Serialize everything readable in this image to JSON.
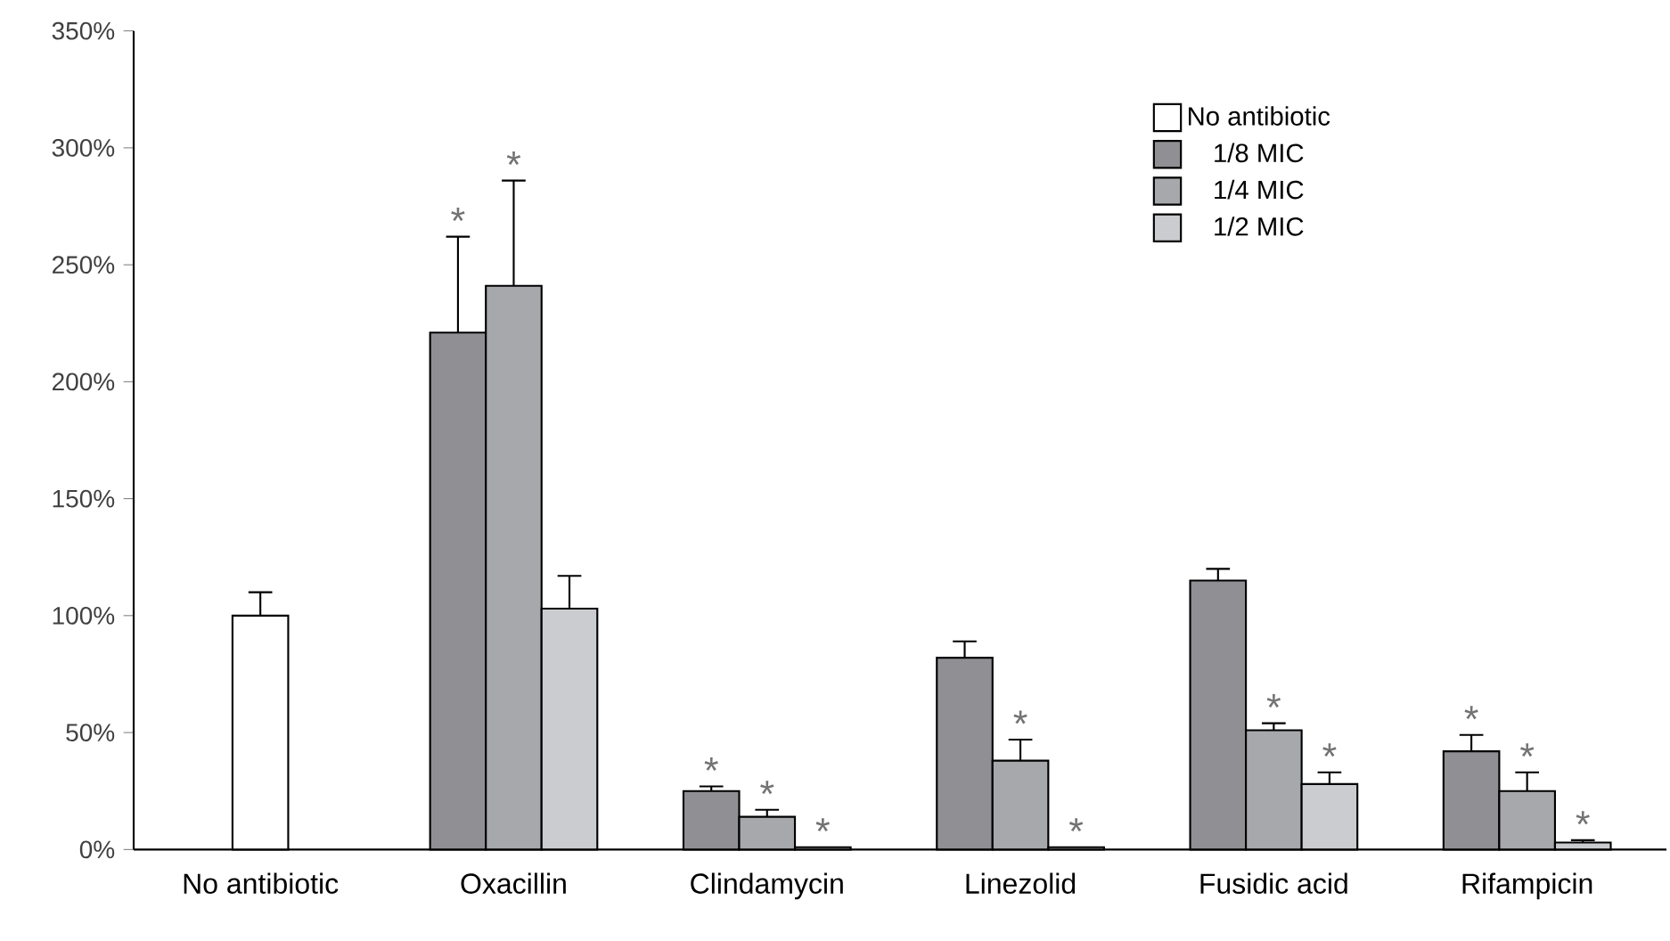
{
  "chart_data": {
    "type": "bar",
    "categories": [
      "No antibiotic",
      "Oxacillin",
      "Clindamycin",
      "Linezolid",
      "Fusidic acid",
      "Rifampicin"
    ],
    "series": [
      {
        "name": "No antibiotic",
        "color": "#ffffff",
        "values": [
          100,
          null,
          null,
          null,
          null,
          null
        ],
        "errors": [
          [
            100,
            110
          ],
          null,
          null,
          null,
          null,
          null
        ]
      },
      {
        "name": "1/8 MIC",
        "color": "#909094",
        "values": [
          null,
          221,
          25,
          82,
          115,
          42
        ],
        "errors": [
          null,
          [
            221,
            262
          ],
          [
            25,
            27
          ],
          [
            82,
            89
          ],
          [
            115,
            120
          ],
          [
            42,
            49
          ]
        ],
        "value_labels": [
          null,
          "*",
          "*",
          null,
          null,
          "*"
        ]
      },
      {
        "name": "1/4 MIC",
        "color": "#a7a8ac",
        "values": [
          null,
          241,
          14,
          38,
          51,
          25
        ],
        "errors": [
          null,
          [
            241,
            286
          ],
          [
            14,
            17
          ],
          [
            38,
            47
          ],
          [
            51,
            54
          ],
          [
            25,
            33
          ]
        ],
        "value_labels": [
          null,
          "*",
          "*",
          "*",
          "*",
          "*"
        ]
      },
      {
        "name": "1/2 MIC",
        "color": "#cbcccf",
        "values": [
          null,
          103,
          1,
          1,
          28,
          3
        ],
        "errors": [
          null,
          [
            103,
            117
          ],
          null,
          null,
          [
            28,
            33
          ],
          [
            3,
            4
          ]
        ],
        "value_labels": [
          null,
          null,
          "*",
          "*",
          "*",
          "*"
        ]
      }
    ],
    "ylim": [
      0,
      350
    ],
    "yticks": [
      {
        "value": 0,
        "label": "0%"
      },
      {
        "value": 50,
        "label": "50%"
      },
      {
        "value": 100,
        "label": "100%"
      },
      {
        "value": 150,
        "label": "150%"
      },
      {
        "value": 200,
        "label": "200%"
      },
      {
        "value": 250,
        "label": "250%"
      },
      {
        "value": 300,
        "label": "300%"
      },
      {
        "value": 350,
        "label": "350%"
      }
    ],
    "legend": "top right",
    "grid": false
  }
}
